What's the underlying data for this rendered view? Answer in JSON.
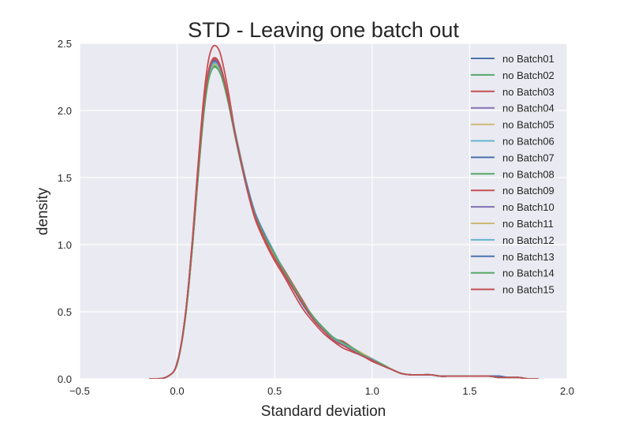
{
  "chart_data": {
    "type": "line",
    "title": "STD - Leaving one batch out",
    "xlabel": "Standard deviation",
    "ylabel": "density",
    "xlim": [
      -0.5,
      2.0
    ],
    "ylim": [
      0.0,
      2.5
    ],
    "xticks": [
      -0.5,
      0.0,
      0.5,
      1.0,
      1.5,
      2.0
    ],
    "xtick_labels": [
      "−0.5",
      "0.0",
      "0.5",
      "1.0",
      "1.5",
      "2.0"
    ],
    "yticks": [
      0.0,
      0.5,
      1.0,
      1.5,
      2.0,
      2.5
    ],
    "ytick_labels": [
      "0.0",
      "0.5",
      "1.0",
      "1.5",
      "2.0",
      "2.5"
    ],
    "grid": true,
    "legend_position": "top-right",
    "x": [
      -0.14,
      -0.1,
      -0.06,
      -0.02,
      0.0,
      0.02,
      0.04,
      0.06,
      0.08,
      0.1,
      0.12,
      0.14,
      0.16,
      0.18,
      0.2,
      0.22,
      0.24,
      0.26,
      0.28,
      0.3,
      0.33,
      0.36,
      0.4,
      0.45,
      0.5,
      0.55,
      0.6,
      0.65,
      0.7,
      0.75,
      0.8,
      0.85,
      0.9,
      0.95,
      1.0,
      1.05,
      1.1,
      1.15,
      1.2,
      1.25,
      1.3,
      1.35,
      1.4,
      1.45,
      1.5,
      1.55,
      1.6,
      1.65,
      1.7,
      1.75,
      1.8,
      1.85
    ],
    "series": [
      {
        "name": "no Batch01",
        "color": "#4c72b0",
        "values": [
          0.0,
          0.0,
          0.01,
          0.05,
          0.12,
          0.25,
          0.45,
          0.72,
          1.05,
          1.42,
          1.78,
          2.08,
          2.28,
          2.37,
          2.38,
          2.33,
          2.23,
          2.1,
          1.95,
          1.8,
          1.6,
          1.42,
          1.22,
          1.06,
          0.92,
          0.78,
          0.66,
          0.54,
          0.44,
          0.36,
          0.29,
          0.25,
          0.21,
          0.17,
          0.14,
          0.1,
          0.07,
          0.04,
          0.03,
          0.03,
          0.03,
          0.02,
          0.02,
          0.02,
          0.02,
          0.02,
          0.02,
          0.02,
          0.01,
          0.01,
          0.0,
          0.0
        ]
      },
      {
        "name": "no Batch02",
        "color": "#55a868",
        "values": [
          0.0,
          0.0,
          0.01,
          0.05,
          0.11,
          0.24,
          0.43,
          0.69,
          1.01,
          1.37,
          1.72,
          2.02,
          2.22,
          2.32,
          2.33,
          2.29,
          2.2,
          2.08,
          1.94,
          1.79,
          1.59,
          1.41,
          1.21,
          1.05,
          0.93,
          0.79,
          0.67,
          0.56,
          0.45,
          0.37,
          0.3,
          0.26,
          0.22,
          0.18,
          0.14,
          0.11,
          0.07,
          0.04,
          0.03,
          0.03,
          0.03,
          0.02,
          0.02,
          0.02,
          0.02,
          0.02,
          0.02,
          0.01,
          0.01,
          0.01,
          0.0,
          0.0
        ]
      },
      {
        "name": "no Batch03",
        "color": "#c44e52",
        "values": [
          0.0,
          0.0,
          0.01,
          0.05,
          0.12,
          0.25,
          0.45,
          0.73,
          1.07,
          1.46,
          1.83,
          2.15,
          2.37,
          2.47,
          2.48,
          2.43,
          2.31,
          2.16,
          1.99,
          1.82,
          1.6,
          1.4,
          1.19,
          1.02,
          0.88,
          0.76,
          0.63,
          0.51,
          0.42,
          0.34,
          0.28,
          0.23,
          0.2,
          0.17,
          0.13,
          0.1,
          0.07,
          0.04,
          0.03,
          0.03,
          0.03,
          0.02,
          0.02,
          0.02,
          0.02,
          0.02,
          0.02,
          0.01,
          0.01,
          0.01,
          0.0,
          0.0
        ]
      },
      {
        "name": "no Batch04",
        "color": "#8172b2",
        "values": [
          0.0,
          0.0,
          0.01,
          0.05,
          0.12,
          0.25,
          0.44,
          0.71,
          1.04,
          1.41,
          1.76,
          2.06,
          2.26,
          2.35,
          2.36,
          2.31,
          2.22,
          2.09,
          1.94,
          1.79,
          1.59,
          1.41,
          1.21,
          1.05,
          0.91,
          0.78,
          0.66,
          0.55,
          0.44,
          0.36,
          0.29,
          0.25,
          0.21,
          0.17,
          0.14,
          0.1,
          0.07,
          0.04,
          0.03,
          0.03,
          0.03,
          0.02,
          0.02,
          0.02,
          0.02,
          0.02,
          0.02,
          0.02,
          0.01,
          0.01,
          0.0,
          0.0
        ]
      },
      {
        "name": "no Batch05",
        "color": "#ccb974",
        "values": [
          0.0,
          0.0,
          0.01,
          0.05,
          0.11,
          0.24,
          0.43,
          0.7,
          1.02,
          1.38,
          1.73,
          2.03,
          2.22,
          2.31,
          2.32,
          2.28,
          2.2,
          2.09,
          1.96,
          1.82,
          1.62,
          1.43,
          1.22,
          1.05,
          0.92,
          0.79,
          0.67,
          0.55,
          0.45,
          0.37,
          0.3,
          0.26,
          0.23,
          0.19,
          0.15,
          0.11,
          0.07,
          0.04,
          0.03,
          0.03,
          0.03,
          0.02,
          0.02,
          0.02,
          0.02,
          0.02,
          0.02,
          0.01,
          0.01,
          0.01,
          0.0,
          0.0
        ]
      },
      {
        "name": "no Batch06",
        "color": "#64b5cd",
        "values": [
          0.0,
          0.0,
          0.01,
          0.05,
          0.12,
          0.25,
          0.44,
          0.71,
          1.04,
          1.4,
          1.75,
          2.05,
          2.25,
          2.34,
          2.35,
          2.31,
          2.22,
          2.1,
          1.96,
          1.81,
          1.61,
          1.43,
          1.23,
          1.07,
          0.93,
          0.79,
          0.67,
          0.55,
          0.45,
          0.37,
          0.3,
          0.26,
          0.22,
          0.18,
          0.14,
          0.11,
          0.07,
          0.04,
          0.03,
          0.03,
          0.03,
          0.02,
          0.02,
          0.02,
          0.02,
          0.02,
          0.02,
          0.01,
          0.01,
          0.01,
          0.0,
          0.0
        ]
      },
      {
        "name": "no Batch07",
        "color": "#4c72b0",
        "values": [
          0.0,
          0.0,
          0.01,
          0.05,
          0.12,
          0.25,
          0.45,
          0.72,
          1.05,
          1.42,
          1.77,
          2.07,
          2.27,
          2.36,
          2.37,
          2.32,
          2.22,
          2.09,
          1.95,
          1.8,
          1.6,
          1.42,
          1.22,
          1.06,
          0.92,
          0.78,
          0.66,
          0.54,
          0.44,
          0.36,
          0.29,
          0.25,
          0.21,
          0.17,
          0.14,
          0.1,
          0.07,
          0.04,
          0.03,
          0.03,
          0.03,
          0.02,
          0.02,
          0.02,
          0.02,
          0.02,
          0.02,
          0.02,
          0.01,
          0.01,
          0.0,
          0.0
        ]
      },
      {
        "name": "no Batch08",
        "color": "#55a868",
        "values": [
          0.0,
          0.0,
          0.01,
          0.05,
          0.11,
          0.24,
          0.43,
          0.7,
          1.02,
          1.38,
          1.73,
          2.03,
          2.23,
          2.32,
          2.33,
          2.29,
          2.2,
          2.08,
          1.94,
          1.79,
          1.6,
          1.42,
          1.22,
          1.06,
          0.93,
          0.8,
          0.68,
          0.56,
          0.46,
          0.38,
          0.31,
          0.27,
          0.23,
          0.18,
          0.14,
          0.11,
          0.07,
          0.04,
          0.03,
          0.03,
          0.03,
          0.02,
          0.02,
          0.02,
          0.02,
          0.02,
          0.02,
          0.01,
          0.01,
          0.01,
          0.0,
          0.0
        ]
      },
      {
        "name": "no Batch09",
        "color": "#c44e52",
        "values": [
          0.0,
          0.0,
          0.01,
          0.05,
          0.12,
          0.25,
          0.45,
          0.72,
          1.05,
          1.43,
          1.79,
          2.09,
          2.29,
          2.38,
          2.39,
          2.34,
          2.24,
          2.1,
          1.95,
          1.8,
          1.6,
          1.42,
          1.22,
          1.06,
          0.93,
          0.81,
          0.69,
          0.57,
          0.45,
          0.36,
          0.3,
          0.28,
          0.23,
          0.18,
          0.14,
          0.1,
          0.07,
          0.04,
          0.03,
          0.03,
          0.03,
          0.02,
          0.02,
          0.02,
          0.02,
          0.02,
          0.02,
          0.01,
          0.01,
          0.01,
          0.0,
          0.0
        ]
      },
      {
        "name": "no Batch10",
        "color": "#8172b2",
        "values": [
          0.0,
          0.0,
          0.01,
          0.05,
          0.12,
          0.25,
          0.44,
          0.71,
          1.04,
          1.41,
          1.76,
          2.06,
          2.26,
          2.35,
          2.36,
          2.31,
          2.22,
          2.09,
          1.95,
          1.8,
          1.6,
          1.42,
          1.22,
          1.06,
          0.92,
          0.78,
          0.66,
          0.55,
          0.44,
          0.36,
          0.29,
          0.25,
          0.21,
          0.17,
          0.14,
          0.1,
          0.07,
          0.04,
          0.03,
          0.03,
          0.03,
          0.02,
          0.02,
          0.02,
          0.02,
          0.02,
          0.02,
          0.02,
          0.01,
          0.01,
          0.0,
          0.0
        ]
      },
      {
        "name": "no Batch11",
        "color": "#ccb974",
        "values": [
          0.0,
          0.0,
          0.01,
          0.05,
          0.11,
          0.24,
          0.43,
          0.7,
          1.02,
          1.39,
          1.74,
          2.04,
          2.24,
          2.33,
          2.34,
          2.3,
          2.21,
          2.1,
          1.97,
          1.83,
          1.63,
          1.44,
          1.23,
          1.06,
          0.92,
          0.79,
          0.67,
          0.55,
          0.45,
          0.37,
          0.3,
          0.26,
          0.23,
          0.19,
          0.15,
          0.11,
          0.07,
          0.04,
          0.03,
          0.03,
          0.03,
          0.02,
          0.02,
          0.02,
          0.02,
          0.02,
          0.02,
          0.01,
          0.01,
          0.01,
          0.0,
          0.0
        ]
      },
      {
        "name": "no Batch12",
        "color": "#64b5cd",
        "values": [
          0.0,
          0.0,
          0.01,
          0.05,
          0.12,
          0.25,
          0.44,
          0.71,
          1.04,
          1.4,
          1.75,
          2.05,
          2.25,
          2.34,
          2.35,
          2.31,
          2.22,
          2.1,
          1.96,
          1.82,
          1.62,
          1.44,
          1.24,
          1.08,
          0.94,
          0.8,
          0.67,
          0.55,
          0.45,
          0.37,
          0.3,
          0.26,
          0.22,
          0.18,
          0.15,
          0.11,
          0.07,
          0.04,
          0.03,
          0.03,
          0.03,
          0.02,
          0.02,
          0.02,
          0.02,
          0.02,
          0.02,
          0.01,
          0.01,
          0.01,
          0.0,
          0.0
        ]
      },
      {
        "name": "no Batch13",
        "color": "#4c72b0",
        "values": [
          0.0,
          0.0,
          0.01,
          0.05,
          0.12,
          0.25,
          0.45,
          0.72,
          1.05,
          1.42,
          1.77,
          2.07,
          2.27,
          2.36,
          2.37,
          2.32,
          2.23,
          2.1,
          1.96,
          1.81,
          1.61,
          1.43,
          1.23,
          1.07,
          0.93,
          0.79,
          0.66,
          0.54,
          0.44,
          0.36,
          0.29,
          0.25,
          0.21,
          0.17,
          0.14,
          0.1,
          0.07,
          0.04,
          0.03,
          0.03,
          0.03,
          0.02,
          0.02,
          0.02,
          0.02,
          0.02,
          0.02,
          0.02,
          0.01,
          0.01,
          0.0,
          0.0
        ]
      },
      {
        "name": "no Batch14",
        "color": "#55a868",
        "values": [
          0.0,
          0.0,
          0.01,
          0.05,
          0.11,
          0.24,
          0.43,
          0.69,
          1.01,
          1.37,
          1.72,
          2.02,
          2.22,
          2.31,
          2.32,
          2.28,
          2.19,
          2.07,
          1.93,
          1.79,
          1.59,
          1.41,
          1.22,
          1.06,
          0.93,
          0.8,
          0.68,
          0.56,
          0.46,
          0.38,
          0.31,
          0.27,
          0.23,
          0.18,
          0.14,
          0.11,
          0.07,
          0.04,
          0.03,
          0.03,
          0.03,
          0.02,
          0.02,
          0.02,
          0.02,
          0.02,
          0.02,
          0.01,
          0.01,
          0.01,
          0.0,
          0.0
        ]
      },
      {
        "name": "no Batch15",
        "color": "#c44e52",
        "values": [
          0.0,
          0.0,
          0.01,
          0.05,
          0.12,
          0.25,
          0.45,
          0.72,
          1.05,
          1.43,
          1.78,
          2.08,
          2.28,
          2.37,
          2.38,
          2.33,
          2.23,
          2.1,
          1.95,
          1.8,
          1.6,
          1.41,
          1.21,
          1.04,
          0.9,
          0.78,
          0.66,
          0.55,
          0.44,
          0.36,
          0.29,
          0.25,
          0.21,
          0.17,
          0.14,
          0.1,
          0.07,
          0.04,
          0.03,
          0.03,
          0.03,
          0.02,
          0.02,
          0.02,
          0.02,
          0.02,
          0.02,
          0.01,
          0.01,
          0.01,
          0.0,
          0.0
        ]
      }
    ]
  }
}
